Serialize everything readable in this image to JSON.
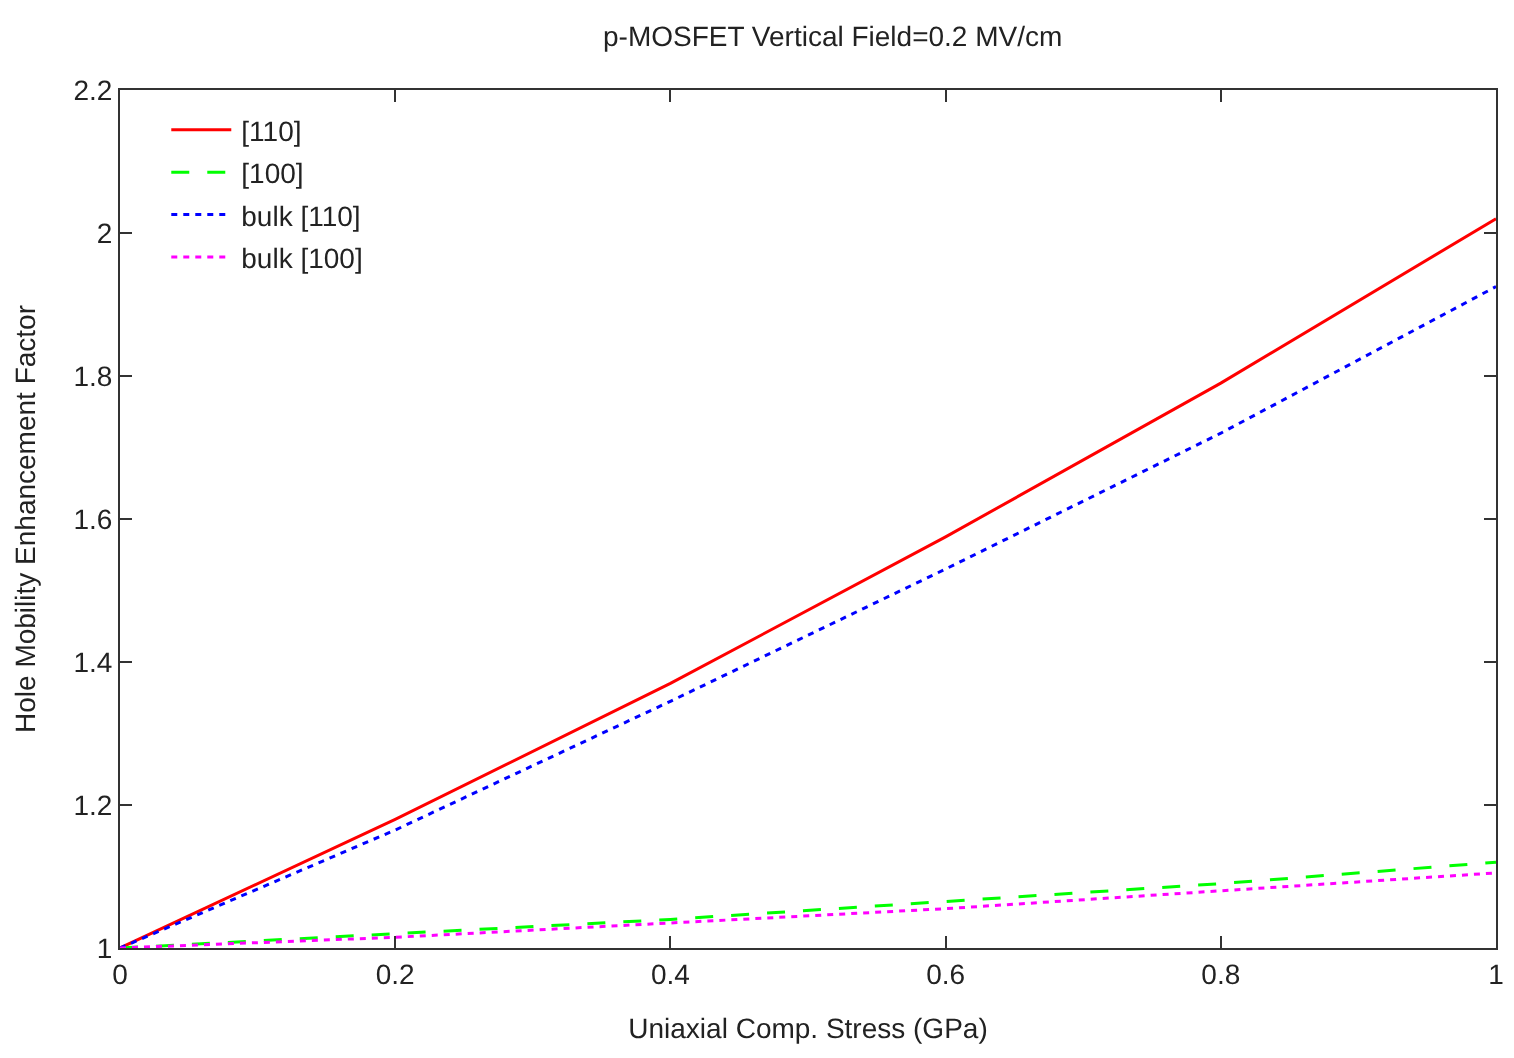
{
  "chart_data": {
    "type": "line",
    "title": "p-MOSFET Vertical Field=0.2 MV/cm",
    "xlabel": "Uniaxial Comp. Stress (GPa)",
    "ylabel": "Hole Mobility Enhancement Factor",
    "x": [
      0,
      0.2,
      0.4,
      0.6,
      0.8,
      1.0
    ],
    "series": [
      {
        "name": "[110]",
        "color": "#ff0000",
        "line_style": "solid",
        "values": [
          1,
          1.18,
          1.37,
          1.575,
          1.79,
          2.02
        ]
      },
      {
        "name": "[100]",
        "color": "#00ff00",
        "line_style": "dashed",
        "values": [
          1,
          1.02,
          1.04,
          1.065,
          1.09,
          1.12
        ]
      },
      {
        "name": "bulk [110]",
        "color": "#0000ff",
        "line_style": "dotted",
        "values": [
          1,
          1.165,
          1.345,
          1.53,
          1.72,
          1.925
        ]
      },
      {
        "name": "bulk [100]",
        "color": "#ff00ff",
        "line_style": "dotted",
        "values": [
          1,
          1.015,
          1.035,
          1.055,
          1.08,
          1.105
        ]
      }
    ],
    "xlim": [
      0,
      1
    ],
    "xticks": [
      0,
      0.2,
      0.4,
      0.6,
      0.8,
      1
    ],
    "ylim": [
      1,
      2.2
    ],
    "yticks": [
      1,
      1.2,
      1.4,
      1.6,
      1.8,
      2,
      2.2
    ],
    "legend": "top left",
    "marker": "none"
  }
}
